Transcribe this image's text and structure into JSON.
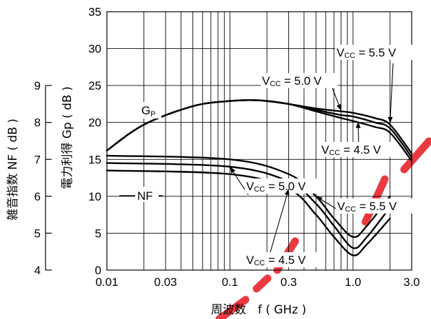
{
  "chart_data": {
    "type": "line",
    "xlabel": "周波数　f ( GHz )",
    "x_scale": "log",
    "xlim": [
      0.01,
      3.0
    ],
    "x_ticks": [
      "0.01",
      "0.03",
      "0.1",
      "0.3",
      "1.0",
      "3.0"
    ],
    "left_axis": {
      "label": "Gp ( dB )",
      "label_prefix": "電力利得",
      "ylim": [
        0,
        35
      ],
      "ticks": [
        "0",
        "5",
        "10",
        "15",
        "20",
        "25",
        "30",
        "35"
      ]
    },
    "nf_axis": {
      "label": "NF ( dB )",
      "label_prefix": "雑音指数",
      "ylim": [
        4,
        9
      ],
      "ticks": [
        "4",
        "5",
        "6",
        "7",
        "8",
        "9"
      ]
    },
    "grid": true,
    "series": [
      {
        "name": "Gp",
        "vcc": "5.5 V",
        "points": [
          [
            0.01,
            16.2
          ],
          [
            0.02,
            19.7
          ],
          [
            0.05,
            22.2
          ],
          [
            0.1,
            22.9
          ],
          [
            0.17,
            23.0
          ],
          [
            0.3,
            22.5
          ],
          [
            0.5,
            21.9
          ],
          [
            0.8,
            21.5
          ],
          [
            1.0,
            21.3
          ],
          [
            1.5,
            20.6
          ],
          [
            2.0,
            19.7
          ],
          [
            3.0,
            15.8
          ]
        ]
      },
      {
        "name": "Gp",
        "vcc": "5.0 V",
        "points": [
          [
            0.01,
            16.2
          ],
          [
            0.02,
            19.7
          ],
          [
            0.05,
            22.2
          ],
          [
            0.1,
            22.9
          ],
          [
            0.17,
            23.0
          ],
          [
            0.3,
            22.5
          ],
          [
            0.5,
            21.7
          ],
          [
            0.8,
            21.0
          ],
          [
            1.0,
            20.8
          ],
          [
            1.5,
            20.0
          ],
          [
            2.0,
            19.2
          ],
          [
            3.0,
            15.3
          ]
        ]
      },
      {
        "name": "Gp",
        "vcc": "4.5 V",
        "points": [
          [
            0.01,
            16.2
          ],
          [
            0.02,
            19.7
          ],
          [
            0.05,
            22.2
          ],
          [
            0.1,
            22.9
          ],
          [
            0.17,
            23.0
          ],
          [
            0.3,
            22.5
          ],
          [
            0.5,
            21.5
          ],
          [
            0.8,
            20.6
          ],
          [
            1.0,
            20.2
          ],
          [
            1.5,
            19.4
          ],
          [
            2.0,
            18.6
          ],
          [
            3.0,
            14.8
          ]
        ]
      },
      {
        "name": "NF",
        "vcc": "5.0 V",
        "points": [
          [
            0.01,
            6.9
          ],
          [
            0.1,
            6.8
          ],
          [
            0.3,
            6.4
          ],
          [
            0.5,
            5.8
          ],
          [
            0.7,
            5.2
          ],
          [
            1.0,
            4.6
          ],
          [
            1.3,
            4.9
          ],
          [
            2.0,
            5.7
          ]
        ]
      },
      {
        "name": "NF",
        "vcc": "5.5 V",
        "points": [
          [
            0.01,
            7.1
          ],
          [
            0.1,
            7.0
          ],
          [
            0.3,
            6.6
          ],
          [
            0.5,
            6.0
          ],
          [
            0.7,
            5.4
          ],
          [
            1.0,
            4.9
          ],
          [
            1.3,
            5.2
          ],
          [
            2.0,
            6.0
          ]
        ]
      },
      {
        "name": "NF",
        "vcc": "4.5 V",
        "points": [
          [
            0.01,
            6.7
          ],
          [
            0.1,
            6.6
          ],
          [
            0.3,
            6.2
          ],
          [
            0.5,
            5.5
          ],
          [
            0.7,
            4.9
          ],
          [
            1.0,
            4.4
          ],
          [
            1.3,
            4.7
          ],
          [
            2.0,
            5.4
          ]
        ]
      }
    ],
    "annotations": {
      "gp_curve": {
        "main": "G",
        "sub": "P"
      },
      "nf_curve": "NF",
      "vcc_labels": [
        {
          "prefix": "V",
          "sub": "CC",
          "value": " = 5.5 V"
        },
        {
          "prefix": "V",
          "sub": "CC",
          "value": " = 5.0 V"
        },
        {
          "prefix": "V",
          "sub": "CC",
          "value": " = 4.5 V"
        },
        {
          "prefix": "V",
          "sub": "CC",
          "value": " = 5.0 V"
        },
        {
          "prefix": "V",
          "sub": "CC",
          "value": " = 5.5 V"
        },
        {
          "prefix": "V",
          "sub": "CC",
          "value": " = 4.5 V"
        }
      ]
    }
  }
}
